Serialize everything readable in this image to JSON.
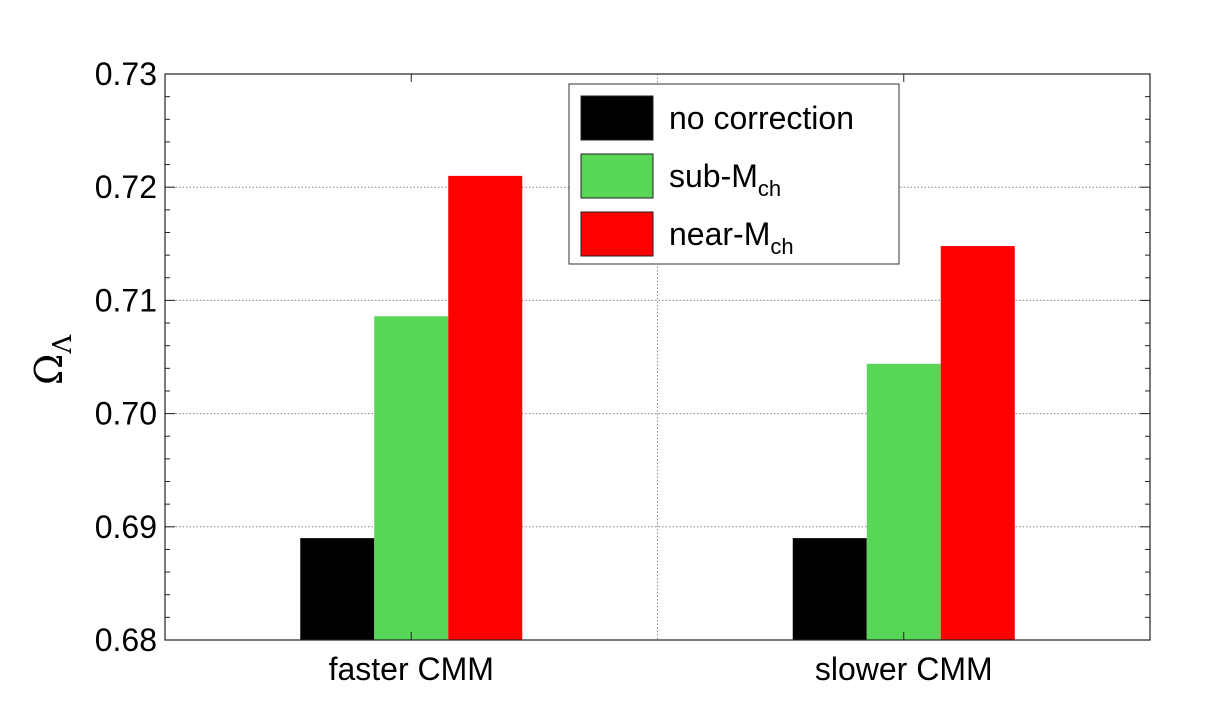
{
  "chart_data": {
    "type": "bar",
    "categories": [
      "faster CMM",
      "slower CMM"
    ],
    "series": [
      {
        "name": "no correction",
        "values": [
          0.689,
          0.689
        ],
        "color": "#000000"
      },
      {
        "name": "sub-M",
        "name_sub": "ch",
        "values": [
          0.7086,
          0.7044
        ],
        "color": "#57d657"
      },
      {
        "name": "near-M",
        "name_sub": "ch",
        "values": [
          0.721,
          0.7148
        ],
        "color": "#ff0000"
      }
    ],
    "ylabel": "Ω",
    "ylabel_sub": "Λ",
    "ylim": [
      0.68,
      0.73
    ],
    "yticks": [
      "0.68",
      "0.69",
      "0.70",
      "0.71",
      "0.72",
      "0.73"
    ],
    "grid": true,
    "legend_position": "top-center"
  }
}
